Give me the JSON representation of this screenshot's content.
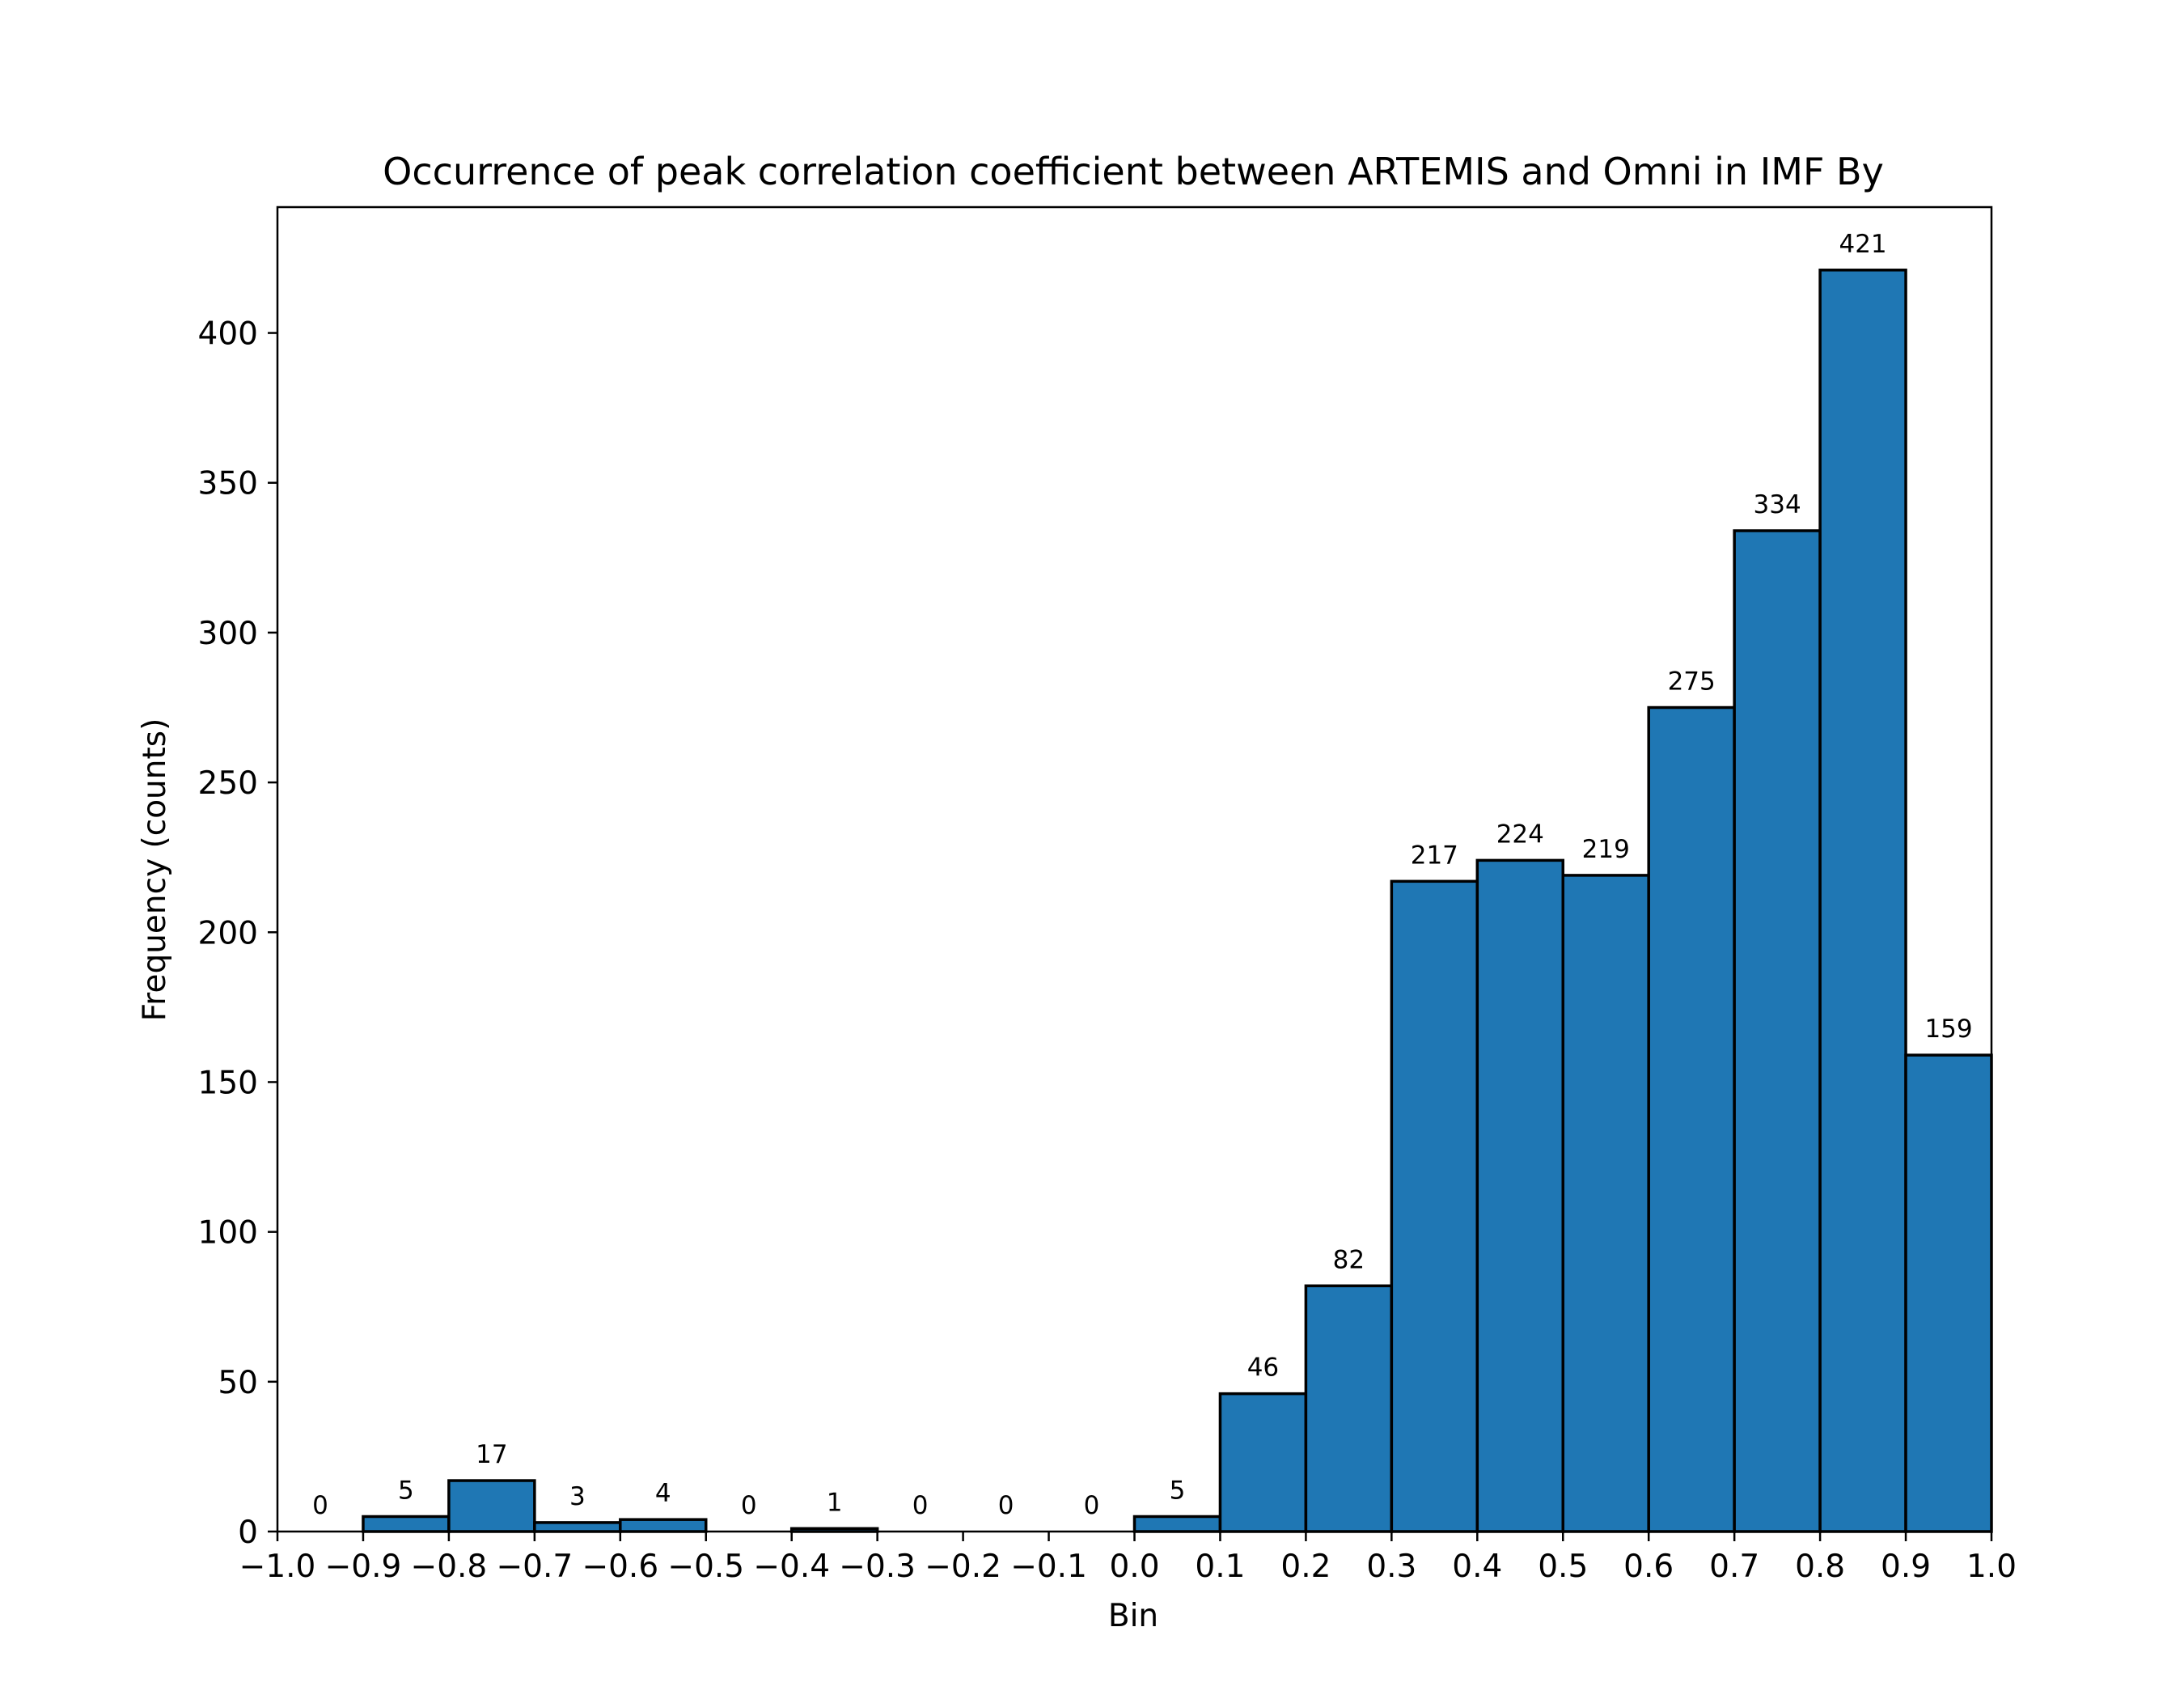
{
  "chart_data": {
    "type": "bar",
    "title": "Occurrence of peak correlation coefficient between ARTEMIS and Omni in IMF By",
    "xlabel": "Bin",
    "ylabel": "Frequency (counts)",
    "bin_edges": [
      -1.0,
      -0.9,
      -0.8,
      -0.7,
      -0.6,
      -0.5,
      -0.4,
      -0.3,
      -0.2,
      -0.1,
      0.0,
      0.1,
      0.2,
      0.3,
      0.4,
      0.5,
      0.6,
      0.7,
      0.8,
      0.9,
      1.0
    ],
    "values": [
      0,
      5,
      17,
      3,
      4,
      0,
      1,
      0,
      0,
      0,
      5,
      46,
      82,
      217,
      224,
      219,
      275,
      334,
      421,
      159
    ],
    "xlim": [
      -1.0,
      1.0
    ],
    "ylim": [
      0,
      442
    ],
    "xticks": [
      -1.0,
      -0.9,
      -0.8,
      -0.7,
      -0.6,
      -0.5,
      -0.4,
      -0.3,
      -0.2,
      -0.1,
      0.0,
      0.1,
      0.2,
      0.3,
      0.4,
      0.5,
      0.6,
      0.7,
      0.8,
      0.9,
      1.0
    ],
    "xtick_labels": [
      "−1.0",
      "−0.9",
      "−0.8",
      "−0.7",
      "−0.6",
      "−0.5",
      "−0.4",
      "−0.3",
      "−0.2",
      "−0.1",
      "0.0",
      "0.1",
      "0.2",
      "0.3",
      "0.4",
      "0.5",
      "0.6",
      "0.7",
      "0.8",
      "0.9",
      "1.0"
    ],
    "yticks": [
      0,
      50,
      100,
      150,
      200,
      250,
      300,
      350,
      400
    ],
    "ytick_labels": [
      "0",
      "50",
      "100",
      "150",
      "200",
      "250",
      "300",
      "350",
      "400"
    ],
    "grid": false,
    "legend": "none",
    "bar_color": "#1f77b4",
    "edge_color": "#000000"
  }
}
